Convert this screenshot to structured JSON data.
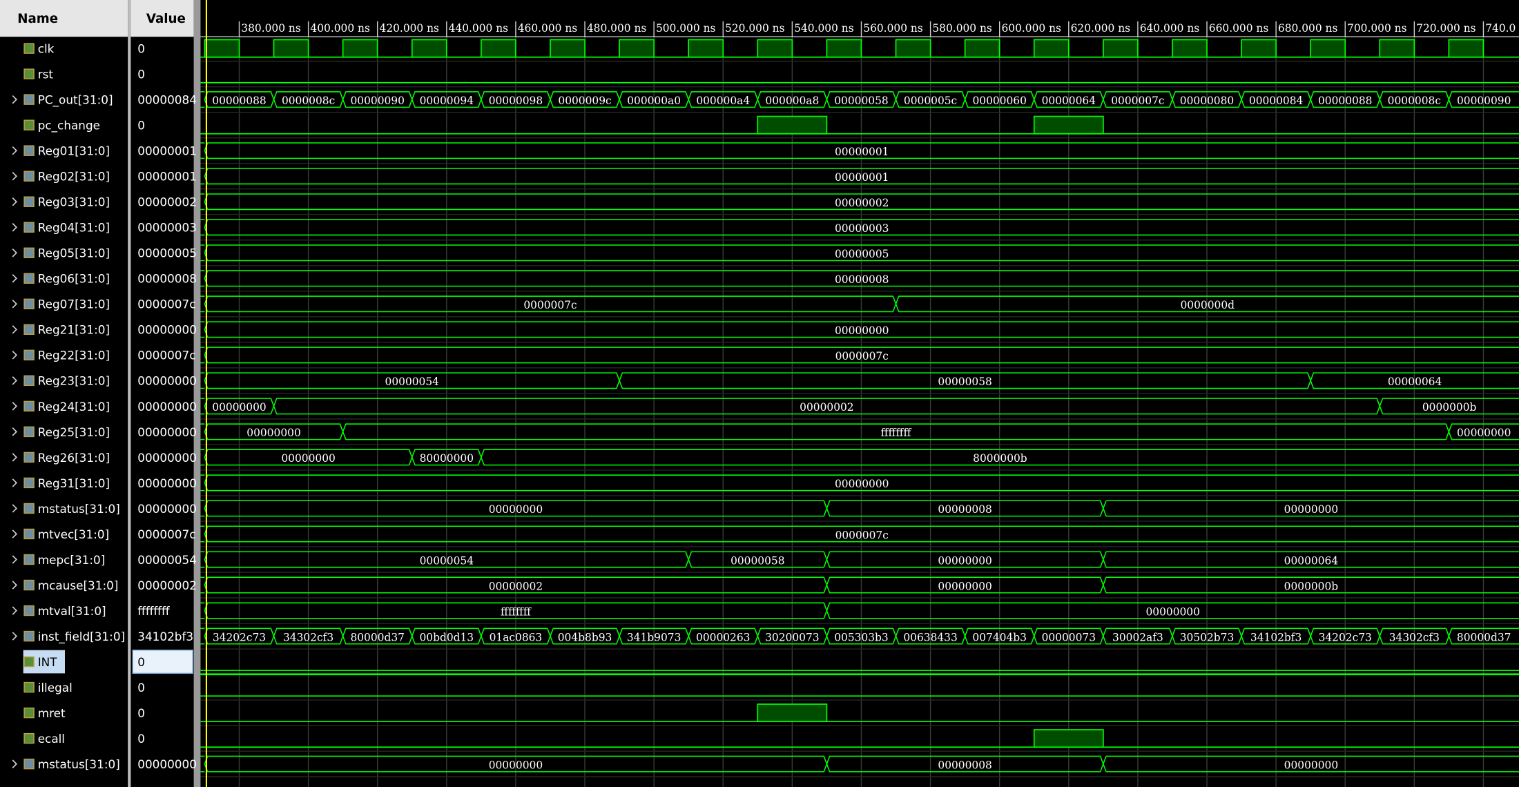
{
  "header": {
    "name": "Name",
    "value": "Value"
  },
  "time_axis": {
    "xlim": [
      368.8,
      750.3
    ],
    "cursor": 370.5,
    "ticks": [
      {
        "value": 380,
        "label": "380.000 ns"
      },
      {
        "value": 400,
        "label": "400.000 ns"
      },
      {
        "value": 420,
        "label": "420.000 ns"
      },
      {
        "value": 440,
        "label": "440.000 ns"
      },
      {
        "value": 460,
        "label": "460.000 ns"
      },
      {
        "value": 480,
        "label": "480.000 ns"
      },
      {
        "value": 500,
        "label": "500.000 ns"
      },
      {
        "value": 520,
        "label": "520.000 ns"
      },
      {
        "value": 540,
        "label": "540.000 ns"
      },
      {
        "value": 560,
        "label": "560.000 ns"
      },
      {
        "value": 580,
        "label": "580.000 ns"
      },
      {
        "value": 600,
        "label": "600.000 ns"
      },
      {
        "value": 620,
        "label": "620.000 ns"
      },
      {
        "value": 640,
        "label": "640.000 ns"
      },
      {
        "value": 660,
        "label": "660.000 ns"
      },
      {
        "value": 680,
        "label": "680.000 ns"
      },
      {
        "value": 700,
        "label": "700.000 ns"
      },
      {
        "value": 720,
        "label": "720.000 ns"
      },
      {
        "value": 740,
        "label": "740.0"
      }
    ]
  },
  "signals": [
    {
      "name": "clk",
      "value": "0",
      "kind": "bit",
      "high": [
        [
          370,
          380
        ],
        [
          390,
          400
        ],
        [
          410,
          420
        ],
        [
          430,
          440
        ],
        [
          450,
          460
        ],
        [
          470,
          480
        ],
        [
          490,
          500
        ],
        [
          510,
          520
        ],
        [
          530,
          540
        ],
        [
          550,
          560
        ],
        [
          570,
          580
        ],
        [
          590,
          600
        ],
        [
          610,
          620
        ],
        [
          630,
          640
        ],
        [
          650,
          660
        ],
        [
          670,
          680
        ],
        [
          690,
          700
        ],
        [
          710,
          720
        ],
        [
          730,
          740
        ]
      ]
    },
    {
      "name": "rst",
      "value": "0",
      "kind": "bit",
      "high": []
    },
    {
      "name": "PC_out[31:0]",
      "value": "00000084",
      "kind": "bus",
      "segments": [
        {
          "from": 370,
          "label": "00000088"
        },
        {
          "from": 390,
          "label": "0000008c"
        },
        {
          "from": 410,
          "label": "00000090"
        },
        {
          "from": 430,
          "label": "00000094"
        },
        {
          "from": 450,
          "label": "00000098"
        },
        {
          "from": 470,
          "label": "0000009c"
        },
        {
          "from": 490,
          "label": "000000a0"
        },
        {
          "from": 510,
          "label": "000000a4"
        },
        {
          "from": 530,
          "label": "000000a8"
        },
        {
          "from": 550,
          "label": "00000058"
        },
        {
          "from": 570,
          "label": "0000005c"
        },
        {
          "from": 590,
          "label": "00000060"
        },
        {
          "from": 610,
          "label": "00000064"
        },
        {
          "from": 630,
          "label": "0000007c"
        },
        {
          "from": 650,
          "label": "00000080"
        },
        {
          "from": 670,
          "label": "00000084"
        },
        {
          "from": 690,
          "label": "00000088"
        },
        {
          "from": 710,
          "label": "0000008c"
        },
        {
          "from": 730,
          "label": "00000090"
        }
      ]
    },
    {
      "name": "pc_change",
      "value": "0",
      "kind": "bit",
      "high": [
        [
          530,
          550
        ],
        [
          610,
          630
        ]
      ]
    },
    {
      "name": "Reg01[31:0]",
      "value": "00000001",
      "kind": "bus",
      "segments": [
        {
          "from": 370,
          "label": "00000001"
        }
      ]
    },
    {
      "name": "Reg02[31:0]",
      "value": "00000001",
      "kind": "bus",
      "segments": [
        {
          "from": 370,
          "label": "00000001"
        }
      ]
    },
    {
      "name": "Reg03[31:0]",
      "value": "00000002",
      "kind": "bus",
      "segments": [
        {
          "from": 370,
          "label": "00000002"
        }
      ]
    },
    {
      "name": "Reg04[31:0]",
      "value": "00000003",
      "kind": "bus",
      "segments": [
        {
          "from": 370,
          "label": "00000003"
        }
      ]
    },
    {
      "name": "Reg05[31:0]",
      "value": "00000005",
      "kind": "bus",
      "segments": [
        {
          "from": 370,
          "label": "00000005"
        }
      ]
    },
    {
      "name": "Reg06[31:0]",
      "value": "00000008",
      "kind": "bus",
      "segments": [
        {
          "from": 370,
          "label": "00000008"
        }
      ]
    },
    {
      "name": "Reg07[31:0]",
      "value": "0000007c",
      "kind": "bus",
      "segments": [
        {
          "from": 370,
          "label": "0000007c"
        },
        {
          "from": 570,
          "label": "0000000d"
        }
      ]
    },
    {
      "name": "Reg21[31:0]",
      "value": "00000000",
      "kind": "bus",
      "segments": [
        {
          "from": 370,
          "label": "00000000"
        }
      ]
    },
    {
      "name": "Reg22[31:0]",
      "value": "0000007c",
      "kind": "bus",
      "segments": [
        {
          "from": 370,
          "label": "0000007c"
        }
      ]
    },
    {
      "name": "Reg23[31:0]",
      "value": "00000000",
      "kind": "bus",
      "segments": [
        {
          "from": 370,
          "label": "00000054"
        },
        {
          "from": 490,
          "label": "00000058"
        },
        {
          "from": 690,
          "label": "00000064"
        }
      ]
    },
    {
      "name": "Reg24[31:0]",
      "value": "00000000",
      "kind": "bus",
      "segments": [
        {
          "from": 370,
          "label": "00000000"
        },
        {
          "from": 390,
          "label": "00000002"
        },
        {
          "from": 710,
          "label": "0000000b"
        }
      ]
    },
    {
      "name": "Reg25[31:0]",
      "value": "00000000",
      "kind": "bus",
      "segments": [
        {
          "from": 370,
          "label": "00000000"
        },
        {
          "from": 410,
          "label": "ffffffff"
        },
        {
          "from": 730,
          "label": "00000000"
        }
      ]
    },
    {
      "name": "Reg26[31:0]",
      "value": "00000000",
      "kind": "bus",
      "segments": [
        {
          "from": 370,
          "label": "00000000"
        },
        {
          "from": 430,
          "label": "80000000"
        },
        {
          "from": 450,
          "label": "8000000b"
        }
      ]
    },
    {
      "name": "Reg31[31:0]",
      "value": "00000000",
      "kind": "bus",
      "segments": [
        {
          "from": 370,
          "label": "00000000"
        }
      ]
    },
    {
      "name": "mstatus[31:0]",
      "value": "00000000",
      "kind": "bus",
      "segments": [
        {
          "from": 370,
          "label": "00000000"
        },
        {
          "from": 550,
          "label": "00000008"
        },
        {
          "from": 630,
          "label": "00000000"
        }
      ]
    },
    {
      "name": "mtvec[31:0]",
      "value": "0000007c",
      "kind": "bus",
      "segments": [
        {
          "from": 370,
          "label": "0000007c"
        }
      ]
    },
    {
      "name": "mepc[31:0]",
      "value": "00000054",
      "kind": "bus",
      "segments": [
        {
          "from": 370,
          "label": "00000054"
        },
        {
          "from": 510,
          "label": "00000058"
        },
        {
          "from": 550,
          "label": "00000000"
        },
        {
          "from": 630,
          "label": "00000064"
        }
      ]
    },
    {
      "name": "mcause[31:0]",
      "value": "00000002",
      "kind": "bus",
      "segments": [
        {
          "from": 370,
          "label": "00000002"
        },
        {
          "from": 550,
          "label": "00000000"
        },
        {
          "from": 630,
          "label": "0000000b"
        }
      ]
    },
    {
      "name": "mtval[31:0]",
      "value": "ffffffff",
      "kind": "bus",
      "segments": [
        {
          "from": 370,
          "label": "ffffffff"
        },
        {
          "from": 550,
          "label": "00000000"
        }
      ]
    },
    {
      "name": "inst_field[31:0]",
      "value": "34102bf3",
      "kind": "bus",
      "segments": [
        {
          "from": 370,
          "label": "34202c73"
        },
        {
          "from": 390,
          "label": "34302cf3"
        },
        {
          "from": 410,
          "label": "80000d37"
        },
        {
          "from": 430,
          "label": "00bd0d13"
        },
        {
          "from": 450,
          "label": "01ac0863"
        },
        {
          "from": 470,
          "label": "004b8b93"
        },
        {
          "from": 490,
          "label": "341b9073"
        },
        {
          "from": 510,
          "label": "00000263"
        },
        {
          "from": 530,
          "label": "30200073"
        },
        {
          "from": 550,
          "label": "005303b3"
        },
        {
          "from": 570,
          "label": "00638433"
        },
        {
          "from": 590,
          "label": "007404b3"
        },
        {
          "from": 610,
          "label": "00000073"
        },
        {
          "from": 630,
          "label": "30002af3"
        },
        {
          "from": 650,
          "label": "30502b73"
        },
        {
          "from": 670,
          "label": "34102bf3"
        },
        {
          "from": 690,
          "label": "34202c73"
        },
        {
          "from": 710,
          "label": "34302cf3"
        },
        {
          "from": 730,
          "label": "80000d37"
        }
      ]
    },
    {
      "name": "INT",
      "value": "0",
      "kind": "bit",
      "selected": true,
      "high": []
    },
    {
      "name": "illegal",
      "value": "0",
      "kind": "bit",
      "high": []
    },
    {
      "name": "mret",
      "value": "0",
      "kind": "bit",
      "high": [
        [
          530,
          550
        ]
      ]
    },
    {
      "name": "ecall",
      "value": "0",
      "kind": "bit",
      "high": [
        [
          610,
          630
        ]
      ]
    },
    {
      "name": "mstatus[31:0]",
      "value": "00000000",
      "kind": "bus",
      "segments": [
        {
          "from": 370,
          "label": "00000000"
        },
        {
          "from": 550,
          "label": "00000008"
        },
        {
          "from": 630,
          "label": "00000000"
        }
      ]
    }
  ]
}
